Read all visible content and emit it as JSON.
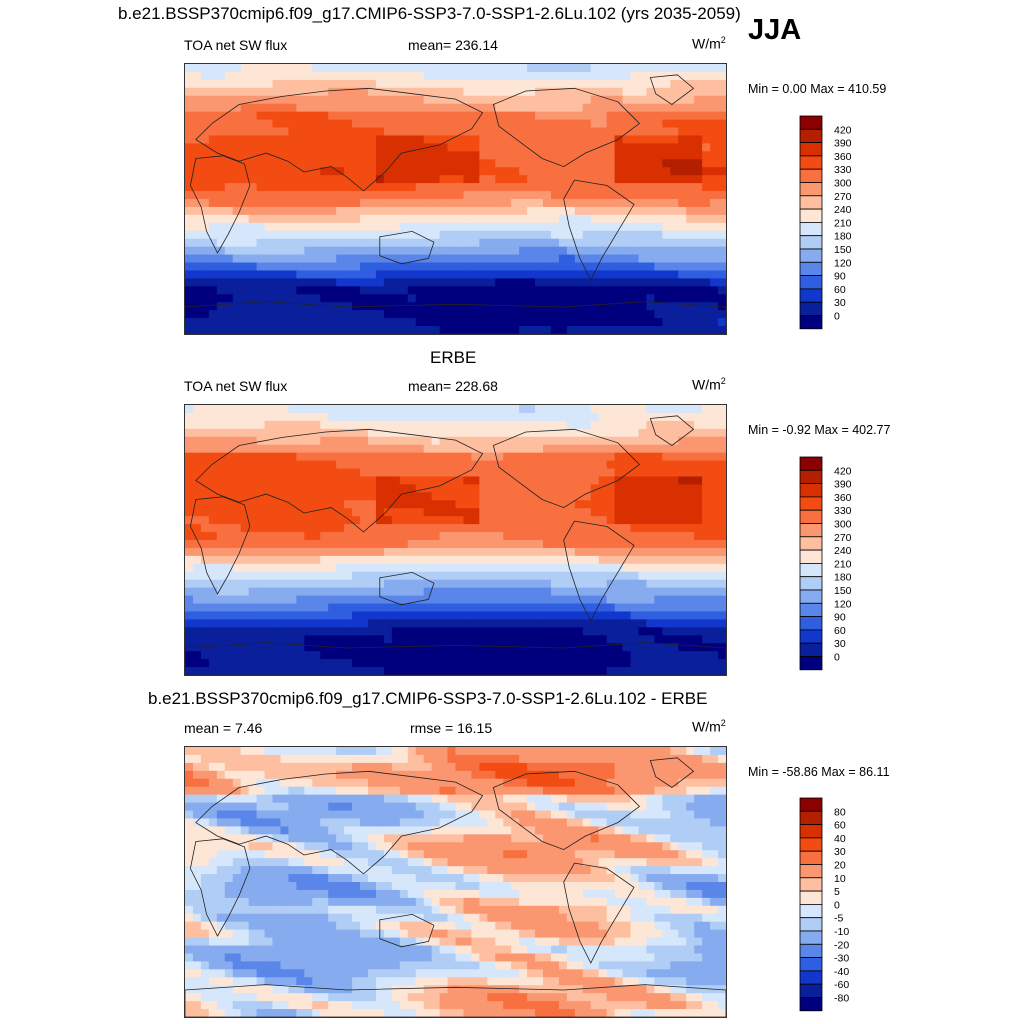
{
  "main_title": "b.e21.BSSP370cmip6.f09_g17.CMIP6-SSP3-7.0-SSP1-2.6Lu.102 (yrs 2035-2059)",
  "season": "JJA",
  "panels": [
    {
      "id": "model",
      "title": "",
      "left_label": "TOA net SW flux",
      "center_label": "mean= 236.14",
      "units_base": "W/m",
      "units_exp": "2",
      "minmax": "Min =   0.00 Max = 410.59",
      "scheme": "abs",
      "colorbar_labels": [
        "420",
        "390",
        "360",
        "330",
        "300",
        "270",
        "240",
        "210",
        "180",
        "150",
        "120",
        "90",
        "60",
        "30",
        "0"
      ]
    },
    {
      "id": "obs",
      "title": "ERBE",
      "left_label": "TOA net SW flux",
      "center_label": "mean= 228.68",
      "units_base": "W/m",
      "units_exp": "2",
      "minmax": "Min =  -0.92 Max = 402.77",
      "scheme": "abs",
      "colorbar_labels": [
        "420",
        "390",
        "360",
        "330",
        "300",
        "270",
        "240",
        "210",
        "180",
        "150",
        "120",
        "90",
        "60",
        "30",
        "0"
      ]
    },
    {
      "id": "diff",
      "title": "b.e21.BSSP370cmip6.f09_g17.CMIP6-SSP3-7.0-SSP1-2.6Lu.102 - ERBE",
      "left_label": "mean =   7.46",
      "center_label": "rmse =  16.15",
      "units_base": "W/m",
      "units_exp": "2",
      "minmax": "Min = -58.86 Max =  86.11",
      "scheme": "diff",
      "colorbar_labels": [
        "80",
        "60",
        "40",
        "30",
        "20",
        "10",
        "5",
        "0",
        "-5",
        "-10",
        "-20",
        "-30",
        "-40",
        "-60",
        "-80"
      ]
    }
  ],
  "colors": {
    "abs": [
      "#8b0000",
      "#b41f00",
      "#d83000",
      "#f24c12",
      "#f87040",
      "#fa9670",
      "#fdbfa0",
      "#fde6d6",
      "#d6e7fb",
      "#b0cdf5",
      "#86abef",
      "#5a86ea",
      "#2f5ee0",
      "#1237cc",
      "#0a1f9c",
      "#00007e"
    ],
    "diff": [
      "#8b0000",
      "#b41f00",
      "#d83000",
      "#f24c12",
      "#f87040",
      "#fa9670",
      "#fdbfa0",
      "#fde6d6",
      "#d6e7fb",
      "#b0cdf5",
      "#86abef",
      "#5a86ea",
      "#2f5ee0",
      "#1237cc",
      "#0a1f9c",
      "#00007e"
    ]
  }
}
